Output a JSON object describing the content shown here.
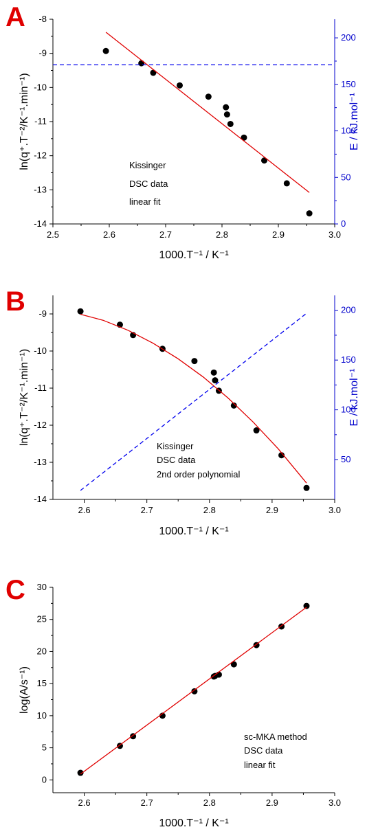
{
  "chart_data": [
    {
      "panel": "A",
      "type": "scatter",
      "xlabel": "1000.T⁻¹   /   K⁻¹",
      "ylabel": "ln(q⁺.T⁻²/K⁻¹.min⁻¹)",
      "y2label": "E   /   kJ.mol⁻¹",
      "xlim": [
        2.5,
        3.0
      ],
      "ylim": [
        -14,
        -8
      ],
      "y2lim": [
        0,
        220
      ],
      "x_ticks": [
        "2.5",
        "2.6",
        "2.7",
        "2.8",
        "2.9",
        "3.0"
      ],
      "y_ticks": [
        "-14",
        "-13",
        "-12",
        "-11",
        "-10",
        "-9",
        "-8"
      ],
      "y2_ticks": [
        "0",
        "50",
        "100",
        "150",
        "200"
      ],
      "annotation": [
        "Kissinger",
        "DSC data",
        "linear fit"
      ],
      "series": [
        {
          "kind": "points",
          "color": "#000000",
          "x": [
            2.594,
            2.657,
            2.678,
            2.725,
            2.776,
            2.807,
            2.809,
            2.815,
            2.839,
            2.875,
            2.915,
            2.955
          ],
          "y": [
            -8.93,
            -9.29,
            -9.57,
            -9.94,
            -10.27,
            -10.58,
            -10.79,
            -11.07,
            -11.47,
            -12.14,
            -12.81,
            -13.69
          ]
        },
        {
          "kind": "line",
          "color": "#e00000",
          "axis": "left",
          "x": [
            2.594,
            2.955
          ],
          "y": [
            -8.38,
            -13.08
          ]
        },
        {
          "kind": "dashed",
          "color": "#0000ee",
          "axis": "right",
          "x": [
            2.5,
            3.0
          ],
          "y": [
            171,
            171
          ]
        }
      ]
    },
    {
      "panel": "B",
      "type": "scatter",
      "xlabel": "1000.T⁻¹   /   K⁻¹",
      "ylabel": "ln(q⁺.T⁻²/K⁻¹.min⁻¹)",
      "y2label": "E   /   kJ.mol⁻¹",
      "xlim": [
        2.55,
        3.0
      ],
      "ylim": [
        -14,
        -8.5
      ],
      "y2lim": [
        10,
        215
      ],
      "x_ticks": [
        "2.6",
        "2.7",
        "2.8",
        "2.9",
        "3.0"
      ],
      "y_ticks": [
        "-14",
        "-13",
        "-12",
        "-11",
        "-10",
        "-9"
      ],
      "y2_ticks": [
        "50",
        "100",
        "150",
        "200"
      ],
      "annotation": [
        "Kissinger",
        "DSC data",
        "2nd order polynomial"
      ],
      "series": [
        {
          "kind": "points",
          "color": "#000000",
          "x": [
            2.594,
            2.657,
            2.678,
            2.725,
            2.776,
            2.807,
            2.809,
            2.815,
            2.839,
            2.875,
            2.915,
            2.955
          ],
          "y": [
            -8.93,
            -9.29,
            -9.57,
            -9.94,
            -10.27,
            -10.58,
            -10.79,
            -11.07,
            -11.47,
            -12.14,
            -12.81,
            -13.69
          ]
        },
        {
          "kind": "line",
          "color": "#e00000",
          "axis": "left",
          "x": [
            2.594,
            2.63,
            2.67,
            2.71,
            2.75,
            2.79,
            2.83,
            2.87,
            2.91,
            2.955
          ],
          "y": [
            -9.01,
            -9.17,
            -9.44,
            -9.79,
            -10.21,
            -10.7,
            -11.27,
            -11.92,
            -12.64,
            -13.56
          ]
        },
        {
          "kind": "dashed",
          "color": "#0000ee",
          "axis": "right",
          "x": [
            2.594,
            2.955
          ],
          "y": [
            19,
            197
          ]
        }
      ]
    },
    {
      "panel": "C",
      "type": "scatter",
      "xlabel": "1000.T⁻¹   /   K⁻¹",
      "ylabel": "log(A/s⁻¹)",
      "xlim": [
        2.55,
        3.0
      ],
      "ylim": [
        -2,
        30
      ],
      "x_ticks": [
        "2.6",
        "2.7",
        "2.8",
        "2.9",
        "3.0"
      ],
      "y_ticks": [
        "0",
        "5",
        "10",
        "15",
        "20",
        "25",
        "30"
      ],
      "annotation": [
        "sc-MKA method",
        "DSC data",
        "linear fit"
      ],
      "series": [
        {
          "kind": "points",
          "color": "#000000",
          "x": [
            2.594,
            2.657,
            2.678,
            2.725,
            2.776,
            2.807,
            2.809,
            2.815,
            2.839,
            2.875,
            2.915,
            2.955
          ],
          "y": [
            1.1,
            5.3,
            6.8,
            10.0,
            13.8,
            16.1,
            16.2,
            16.4,
            18.0,
            21.0,
            23.9,
            27.1
          ]
        },
        {
          "kind": "line",
          "color": "#e00000",
          "axis": "left",
          "x": [
            2.594,
            2.955
          ],
          "y": [
            0.9,
            26.9
          ]
        }
      ]
    }
  ]
}
